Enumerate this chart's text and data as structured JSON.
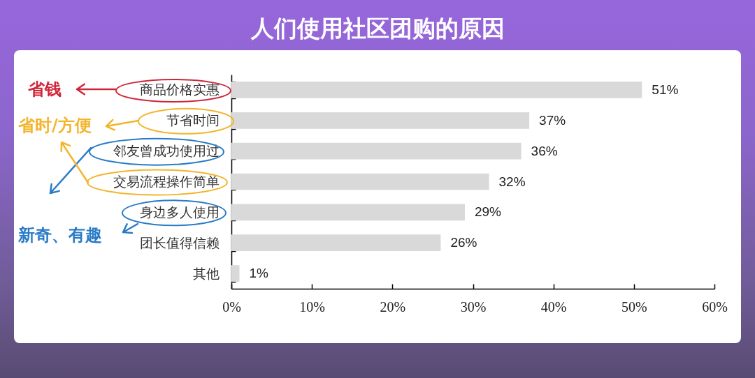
{
  "chart_data": {
    "type": "bar",
    "orientation": "horizontal",
    "title": "人们使用社区团购的原因",
    "categories": [
      "商品价格实惠",
      "节省时间",
      "邻友曾成功使用过",
      "交易流程操作简单",
      "身边多人使用",
      "团长值得信赖",
      "其他"
    ],
    "values": [
      51,
      37,
      36,
      32,
      29,
      26,
      1
    ],
    "value_labels": [
      "51%",
      "37%",
      "36%",
      "32%",
      "29%",
      "26%",
      "1%"
    ],
    "color": "#d9d9d9",
    "xlim": [
      0,
      60
    ],
    "xticks": [
      {
        "value": 0,
        "label": "0%"
      },
      {
        "value": 10,
        "label": "10%"
      },
      {
        "value": 20,
        "label": "20%"
      },
      {
        "value": 30,
        "label": "30%"
      },
      {
        "value": 40,
        "label": "40%"
      },
      {
        "value": 50,
        "label": "50%"
      },
      {
        "value": 60,
        "label": "60%"
      }
    ],
    "grid": false,
    "annotations": [
      "省钱",
      "省时/方便",
      "新奇、有趣"
    ]
  }
}
